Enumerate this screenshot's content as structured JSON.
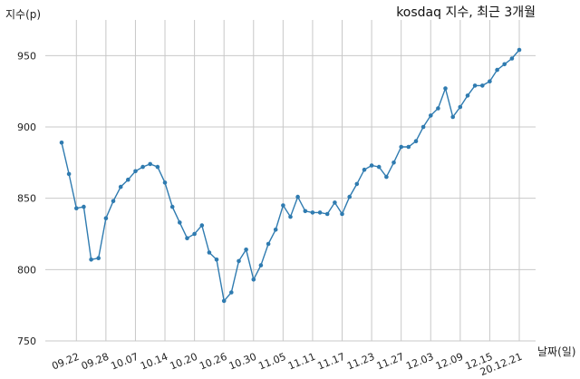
{
  "chart_data": {
    "type": "line",
    "title": "kosdaq 지수, 최근 3개월",
    "ylabel": "지수(p)",
    "xlabel": "날짜(일)",
    "ylim": [
      750,
      975
    ],
    "yticks": [
      750,
      800,
      850,
      900,
      950
    ],
    "grid": true,
    "color": "#2f7bb0",
    "x_tick_labels": [
      "09.22",
      "09.28",
      "10.07",
      "10.14",
      "10.20",
      "10.26",
      "10.30",
      "11.05",
      "11.11",
      "11.17",
      "11.23",
      "11.27",
      "12.03",
      "12.09",
      "12.15",
      "20.12.21"
    ],
    "x_tick_positions": [
      2,
      6,
      10,
      14,
      18,
      22,
      26,
      30,
      34,
      38,
      42,
      46,
      50,
      54,
      58,
      62
    ],
    "values": [
      889,
      867,
      843,
      844,
      807,
      808,
      836,
      848,
      858,
      863,
      869,
      872,
      874,
      872,
      861,
      844,
      833,
      822,
      825,
      831,
      812,
      807,
      778,
      784,
      806,
      814,
      793,
      803,
      818,
      828,
      845,
      837,
      851,
      841,
      840,
      840,
      839,
      847,
      839,
      851,
      860,
      870,
      873,
      872,
      865,
      875,
      886,
      886,
      890,
      900,
      908,
      913,
      927,
      907,
      914,
      922,
      929,
      929,
      932,
      940,
      944,
      948,
      954
    ]
  }
}
